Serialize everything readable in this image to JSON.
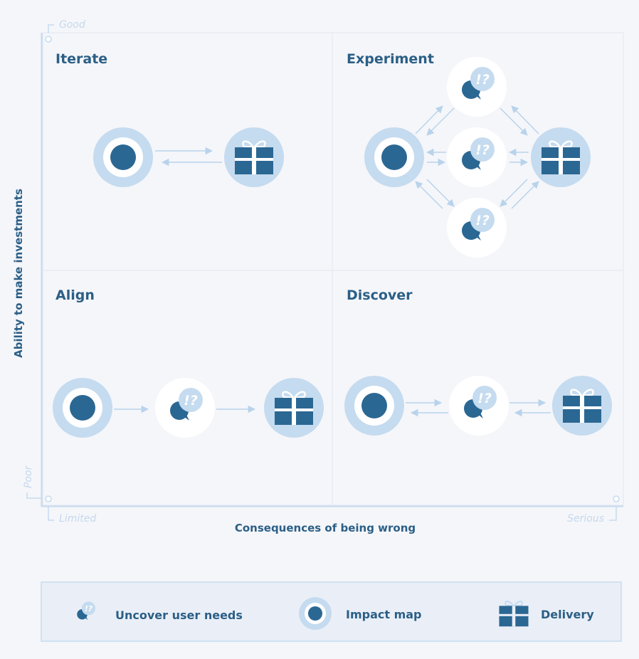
{
  "axes": {
    "y_label": "Ability to make investments",
    "y_top": "Good",
    "y_bottom": "Poor",
    "x_label": "Consequences of being wrong",
    "x_left": "Limited",
    "x_right": "Serious"
  },
  "quadrants": {
    "top_left": "Iterate",
    "top_right": "Experiment",
    "bottom_left": "Align",
    "bottom_right": "Discover"
  },
  "icon_glyph": "!?",
  "legend": {
    "user_needs": "Uncover user needs",
    "impact_map": "Impact map",
    "delivery": "Delivery"
  },
  "colors": {
    "dark": "#2b6793",
    "light": "#c5dbef",
    "white": "#ffffff",
    "arrow": "#b8d3eb",
    "grid": "#e1e7f0"
  }
}
